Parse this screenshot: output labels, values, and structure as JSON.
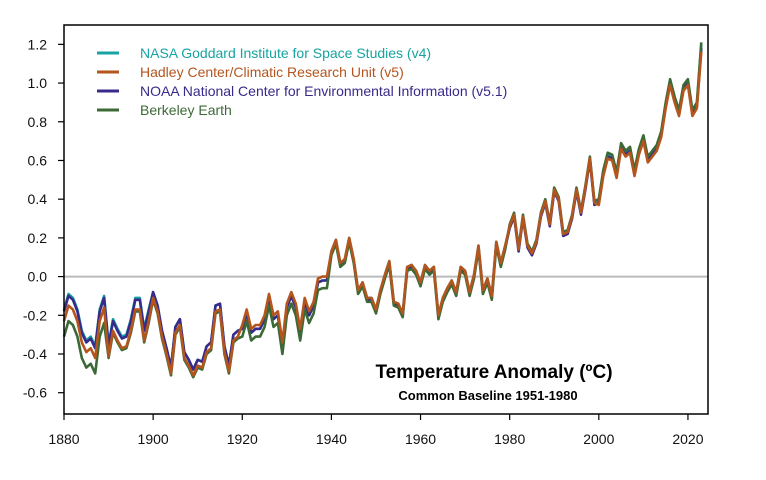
{
  "chart_data": {
    "type": "line",
    "title": "Temperature Anomaly (ºC)",
    "subtitle": "Common Baseline 1951-1980",
    "xlabel": "",
    "ylabel": "",
    "xlim": [
      1880,
      2024.5
    ],
    "ylim": [
      -0.71,
      1.3
    ],
    "xticks": [
      1880,
      1900,
      1920,
      1940,
      1960,
      1980,
      2000,
      2020
    ],
    "yticks": [
      -0.6,
      -0.4,
      -0.2,
      0.0,
      0.2,
      0.4,
      0.6,
      0.8,
      1.0,
      1.2
    ],
    "ytick_labels": [
      "-0.6",
      "-0.4",
      "-0.2",
      "0.0",
      "0.2",
      "0.4",
      "0.6",
      "0.8",
      "1.0",
      "1.2"
    ],
    "grid": false,
    "reference_line": 0,
    "legend_position": "top-left",
    "x_start": 1880,
    "series": [
      {
        "name": "NASA Goddard Institute for Space Studies (v4)",
        "color": "#17a3a1",
        "values": [
          -0.17,
          -0.09,
          -0.11,
          -0.17,
          -0.28,
          -0.33,
          -0.31,
          -0.36,
          -0.17,
          -0.1,
          -0.35,
          -0.22,
          -0.27,
          -0.31,
          -0.3,
          -0.22,
          -0.11,
          -0.11,
          -0.27,
          -0.17,
          -0.08,
          -0.15,
          -0.28,
          -0.37,
          -0.47,
          -0.26,
          -0.22,
          -0.39,
          -0.43,
          -0.48,
          -0.43,
          -0.44,
          -0.36,
          -0.34,
          -0.15,
          -0.14,
          -0.36,
          -0.46,
          -0.3,
          -0.28,
          -0.27,
          -0.19,
          -0.29,
          -0.27,
          -0.27,
          -0.22,
          -0.11,
          -0.22,
          -0.2,
          -0.36,
          -0.16,
          -0.1,
          -0.16,
          -0.29,
          -0.13,
          -0.2,
          -0.15,
          -0.03,
          -0.02,
          -0.02,
          0.13,
          0.19,
          0.07,
          0.09,
          0.2,
          0.09,
          -0.07,
          -0.03,
          -0.11,
          -0.11,
          -0.17,
          -0.07,
          0.01,
          0.08,
          -0.13,
          -0.14,
          -0.19,
          0.05,
          0.06,
          0.03,
          -0.03,
          0.06,
          0.03,
          0.05,
          -0.2,
          -0.11,
          -0.06,
          -0.02,
          -0.08,
          0.05,
          0.03,
          -0.08,
          0.01,
          0.16,
          -0.07,
          -0.01,
          -0.1,
          0.18,
          0.07,
          0.16,
          0.26,
          0.32,
          0.14,
          0.31,
          0.16,
          0.12,
          0.18,
          0.32,
          0.39,
          0.27,
          0.45,
          0.4,
          0.22,
          0.23,
          0.31,
          0.45,
          0.33,
          0.46,
          0.61,
          0.38,
          0.39,
          0.54,
          0.63,
          0.62,
          0.53,
          0.68,
          0.64,
          0.66,
          0.54,
          0.65,
          0.72,
          0.61,
          0.64,
          0.67,
          0.74,
          0.89,
          1.01,
          0.92,
          0.85,
          0.98,
          1.01,
          0.85,
          0.89,
          1.2
        ]
      },
      {
        "name": "Hadley Center/Climatic Research Unit (v5)",
        "color": "#b4551e",
        "values": [
          -0.23,
          -0.15,
          -0.17,
          -0.23,
          -0.34,
          -0.39,
          -0.37,
          -0.42,
          -0.23,
          -0.16,
          -0.41,
          -0.28,
          -0.33,
          -0.37,
          -0.36,
          -0.28,
          -0.17,
          -0.17,
          -0.33,
          -0.23,
          -0.11,
          -0.18,
          -0.31,
          -0.4,
          -0.5,
          -0.29,
          -0.25,
          -0.42,
          -0.46,
          -0.51,
          -0.46,
          -0.47,
          -0.39,
          -0.37,
          -0.18,
          -0.17,
          -0.39,
          -0.49,
          -0.33,
          -0.31,
          -0.25,
          -0.17,
          -0.27,
          -0.25,
          -0.25,
          -0.2,
          -0.09,
          -0.2,
          -0.18,
          -0.34,
          -0.14,
          -0.08,
          -0.14,
          -0.27,
          -0.11,
          -0.18,
          -0.13,
          -0.01,
          0.0,
          0.0,
          0.13,
          0.19,
          0.07,
          0.09,
          0.2,
          0.09,
          -0.07,
          -0.03,
          -0.11,
          -0.11,
          -0.17,
          -0.07,
          0.01,
          0.08,
          -0.13,
          -0.14,
          -0.19,
          0.05,
          0.06,
          0.03,
          -0.03,
          0.06,
          0.03,
          0.05,
          -0.2,
          -0.11,
          -0.06,
          -0.02,
          -0.08,
          0.05,
          0.03,
          -0.08,
          0.01,
          0.16,
          -0.07,
          -0.01,
          -0.1,
          0.18,
          0.07,
          0.16,
          0.26,
          0.32,
          0.14,
          0.31,
          0.16,
          0.12,
          0.18,
          0.32,
          0.39,
          0.27,
          0.45,
          0.4,
          0.22,
          0.23,
          0.31,
          0.45,
          0.33,
          0.46,
          0.61,
          0.38,
          0.37,
          0.52,
          0.61,
          0.6,
          0.51,
          0.66,
          0.62,
          0.64,
          0.52,
          0.63,
          0.7,
          0.59,
          0.62,
          0.65,
          0.72,
          0.87,
          0.99,
          0.9,
          0.83,
          0.96,
          0.99,
          0.83,
          0.87,
          1.16
        ]
      },
      {
        "name": "NOAA National Center for Environmental Information (v5.1)",
        "color": "#372a8a",
        "values": [
          -0.18,
          -0.1,
          -0.12,
          -0.18,
          -0.29,
          -0.34,
          -0.32,
          -0.37,
          -0.18,
          -0.11,
          -0.36,
          -0.23,
          -0.28,
          -0.32,
          -0.31,
          -0.23,
          -0.12,
          -0.12,
          -0.28,
          -0.18,
          -0.08,
          -0.15,
          -0.28,
          -0.37,
          -0.47,
          -0.26,
          -0.22,
          -0.39,
          -0.43,
          -0.48,
          -0.43,
          -0.44,
          -0.36,
          -0.34,
          -0.15,
          -0.14,
          -0.36,
          -0.46,
          -0.3,
          -0.28,
          -0.27,
          -0.19,
          -0.29,
          -0.27,
          -0.27,
          -0.22,
          -0.11,
          -0.22,
          -0.2,
          -0.36,
          -0.16,
          -0.1,
          -0.16,
          -0.29,
          -0.13,
          -0.2,
          -0.15,
          -0.03,
          -0.02,
          -0.02,
          0.12,
          0.18,
          0.06,
          0.08,
          0.19,
          0.08,
          -0.08,
          -0.04,
          -0.12,
          -0.12,
          -0.18,
          -0.08,
          0.0,
          0.07,
          -0.14,
          -0.15,
          -0.2,
          0.04,
          0.05,
          0.02,
          -0.04,
          0.05,
          0.02,
          0.04,
          -0.21,
          -0.12,
          -0.07,
          -0.03,
          -0.09,
          0.04,
          0.02,
          -0.09,
          0.0,
          0.15,
          -0.08,
          -0.02,
          -0.11,
          0.17,
          0.06,
          0.15,
          0.25,
          0.31,
          0.13,
          0.3,
          0.15,
          0.11,
          0.17,
          0.31,
          0.38,
          0.26,
          0.44,
          0.39,
          0.21,
          0.22,
          0.3,
          0.44,
          0.32,
          0.45,
          0.6,
          0.37,
          0.38,
          0.53,
          0.62,
          0.61,
          0.52,
          0.67,
          0.63,
          0.65,
          0.53,
          0.64,
          0.71,
          0.6,
          0.63,
          0.66,
          0.73,
          0.88,
          1.0,
          0.91,
          0.84,
          0.97,
          1.0,
          0.84,
          0.88,
          1.18
        ]
      },
      {
        "name": "Berkeley Earth",
        "color": "#3c6a37",
        "values": [
          -0.31,
          -0.23,
          -0.25,
          -0.31,
          -0.42,
          -0.47,
          -0.45,
          -0.5,
          -0.31,
          -0.24,
          -0.42,
          -0.29,
          -0.34,
          -0.38,
          -0.37,
          -0.29,
          -0.18,
          -0.18,
          -0.34,
          -0.24,
          -0.12,
          -0.19,
          -0.32,
          -0.41,
          -0.51,
          -0.3,
          -0.26,
          -0.43,
          -0.47,
          -0.52,
          -0.47,
          -0.48,
          -0.4,
          -0.38,
          -0.19,
          -0.18,
          -0.4,
          -0.5,
          -0.34,
          -0.32,
          -0.31,
          -0.23,
          -0.33,
          -0.31,
          -0.31,
          -0.26,
          -0.15,
          -0.26,
          -0.24,
          -0.4,
          -0.2,
          -0.14,
          -0.2,
          -0.33,
          -0.17,
          -0.24,
          -0.19,
          -0.07,
          -0.06,
          -0.06,
          0.11,
          0.17,
          0.05,
          0.07,
          0.18,
          0.07,
          -0.09,
          -0.05,
          -0.13,
          -0.13,
          -0.19,
          -0.09,
          -0.01,
          0.06,
          -0.15,
          -0.16,
          -0.21,
          0.03,
          0.04,
          0.01,
          -0.05,
          0.04,
          0.01,
          0.03,
          -0.22,
          -0.13,
          -0.08,
          -0.04,
          -0.1,
          0.03,
          0.01,
          -0.1,
          -0.01,
          0.14,
          -0.09,
          -0.03,
          -0.12,
          0.16,
          0.05,
          0.14,
          0.27,
          0.33,
          0.15,
          0.32,
          0.17,
          0.13,
          0.19,
          0.33,
          0.4,
          0.28,
          0.46,
          0.41,
          0.23,
          0.24,
          0.32,
          0.46,
          0.34,
          0.47,
          0.62,
          0.39,
          0.4,
          0.55,
          0.64,
          0.63,
          0.54,
          0.69,
          0.65,
          0.67,
          0.55,
          0.66,
          0.73,
          0.62,
          0.65,
          0.68,
          0.75,
          0.9,
          1.02,
          0.93,
          0.86,
          0.99,
          1.02,
          0.86,
          0.9,
          1.21
        ]
      }
    ]
  }
}
